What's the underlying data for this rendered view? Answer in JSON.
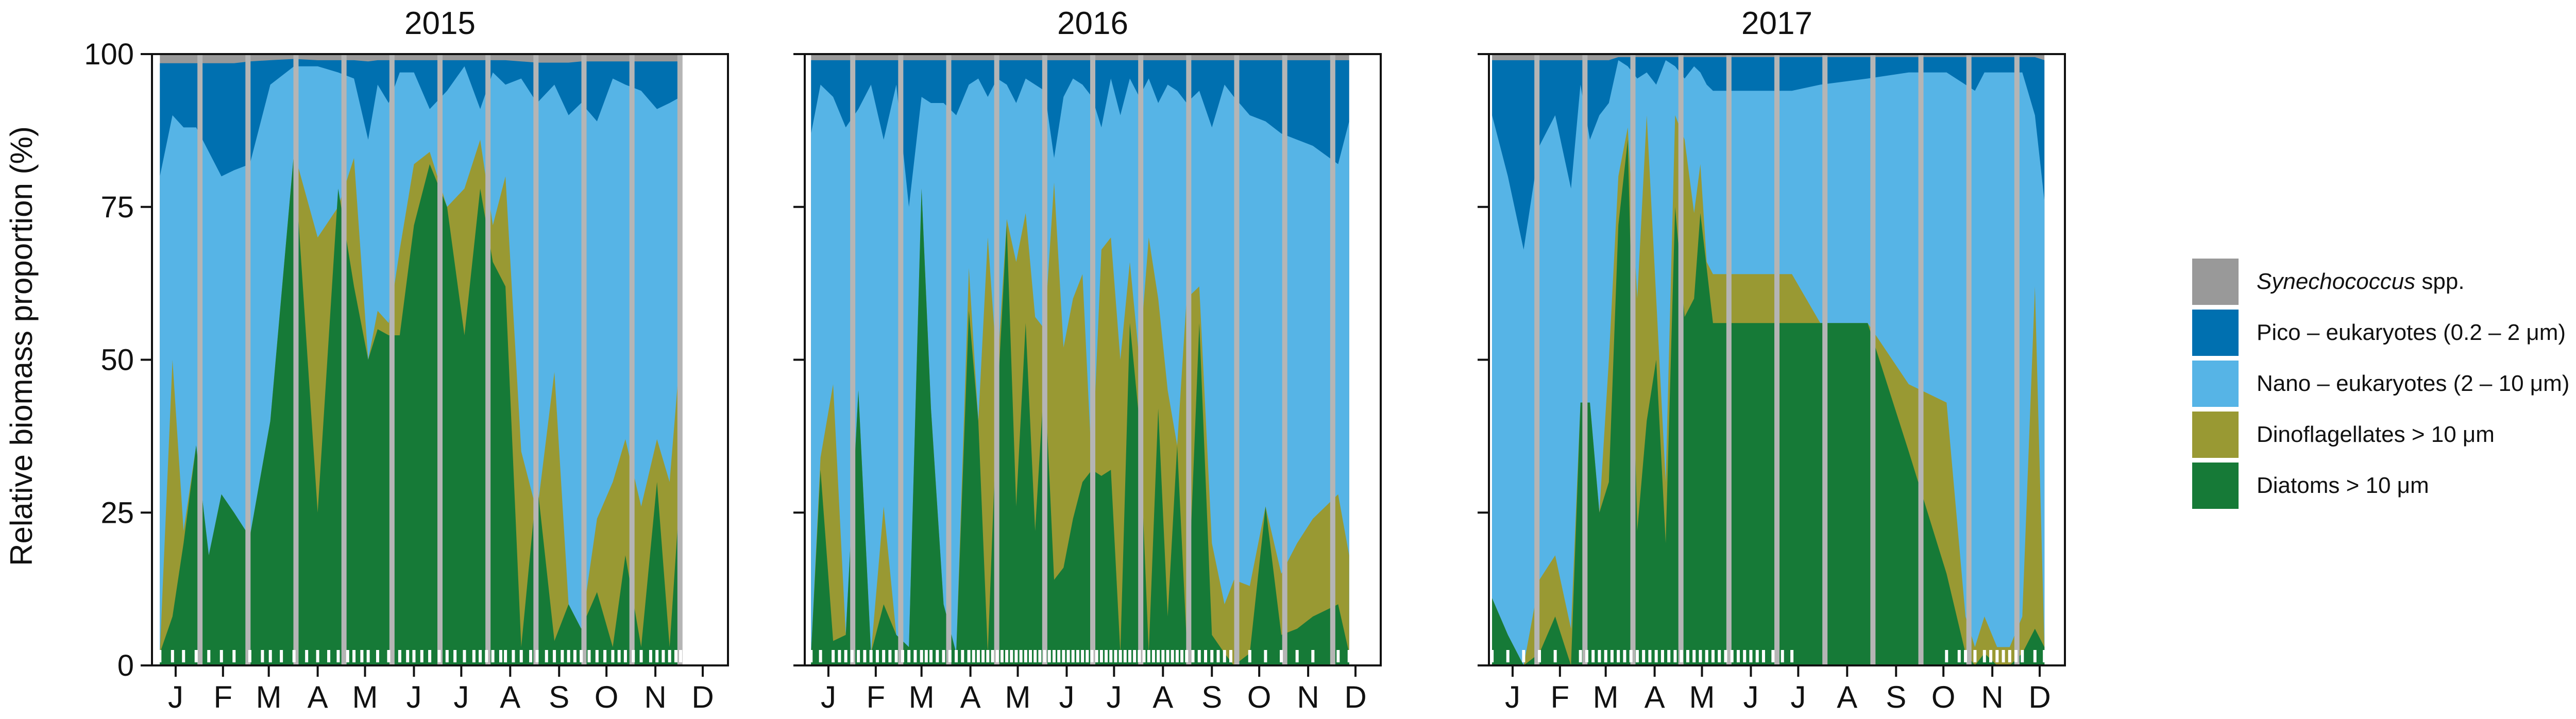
{
  "chart_data": {
    "type": "area",
    "stacked": true,
    "ylabel": "Relative biomass proportion (%)",
    "ylim": [
      0,
      100
    ],
    "yticks": [
      0,
      25,
      50,
      75,
      100
    ],
    "xlim": [
      0,
      365
    ],
    "month_ticks": [
      {
        "label": "J",
        "day": 15
      },
      {
        "label": "F",
        "day": 45
      },
      {
        "label": "M",
        "day": 74
      },
      {
        "label": "A",
        "day": 105
      },
      {
        "label": "M",
        "day": 135
      },
      {
        "label": "J",
        "day": 166
      },
      {
        "label": "J",
        "day": 196
      },
      {
        "label": "A",
        "day": 227
      },
      {
        "label": "S",
        "day": 258
      },
      {
        "label": "O",
        "day": 288
      },
      {
        "label": "N",
        "day": 319
      },
      {
        "label": "D",
        "day": 349
      }
    ],
    "colors": {
      "synechococcus": "#999999",
      "pico": "#0070b0",
      "nano": "#56b4e6",
      "dino": "#999933",
      "diatoms": "#167a37",
      "month_lines": "#b5b5b5",
      "rug": "#ffffff"
    },
    "legend": [
      {
        "key": "synechococcus",
        "label_italic": "Synechococcus",
        "label": " spp."
      },
      {
        "key": "pico",
        "label_italic": "",
        "label": "Pico – eukaryotes (0.2 – 2 μm)"
      },
      {
        "key": "nano",
        "label_italic": "",
        "label": "Nano – eukaryotes (2 – 10 μm)"
      },
      {
        "key": "dino",
        "label_italic": "",
        "label": "Dinoflagellates > 10 μm"
      },
      {
        "key": "diatoms",
        "label_italic": "",
        "label": "Diatoms > 10 μm"
      }
    ],
    "stack_order": [
      "diatoms",
      "dino",
      "nano",
      "pico",
      "synechococcus"
    ],
    "note": "values are cumulative percentages (top of each layer) per sampling day",
    "panels": [
      {
        "title": "2015",
        "x": [
          5,
          13,
          20,
          28,
          36,
          44,
          52,
          62,
          75,
          90,
          105,
          118,
          128,
          137,
          143,
          150,
          157,
          166,
          176,
          187,
          198,
          208,
          216,
          224,
          234,
          244,
          255,
          264,
          272,
          282,
          292,
          300,
          310,
          320,
          328,
          335
        ],
        "diatoms": [
          2,
          8,
          20,
          36,
          18,
          28,
          25,
          21,
          40,
          84,
          25,
          78,
          62,
          50,
          55,
          54,
          54,
          72,
          82,
          75,
          54,
          78,
          66,
          62,
          3,
          30,
          4,
          10,
          6,
          12,
          3,
          18,
          3,
          30,
          3,
          30
        ],
        "dino": [
          2,
          50,
          22,
          36,
          18,
          28,
          25,
          21,
          40,
          84,
          70,
          75,
          83,
          50,
          58,
          56,
          68,
          82,
          84,
          75,
          78,
          86,
          72,
          80,
          35,
          25,
          48,
          10,
          6,
          24,
          30,
          37,
          26,
          37,
          30,
          52
        ],
        "nano": [
          80,
          90,
          88,
          88,
          84,
          80,
          81,
          82,
          95,
          98,
          98,
          97,
          96,
          86,
          95,
          92,
          97,
          97,
          91,
          94,
          98,
          91,
          97,
          95,
          96,
          92,
          95,
          90,
          92,
          89,
          96,
          95,
          94,
          91,
          92,
          93
        ],
        "pico": [
          98.5,
          98.5,
          98.5,
          98.5,
          98.5,
          98.5,
          98.5,
          98.8,
          99,
          99.2,
          99,
          99,
          99,
          98.8,
          99,
          99,
          99,
          99,
          99,
          99,
          99,
          99,
          99,
          99,
          98.8,
          98.6,
          98.6,
          98.6,
          98.8,
          98.8,
          98.8,
          98.8,
          98.8,
          98.8,
          98.8,
          98.8
        ],
        "synechococcus": [
          100,
          100,
          100,
          100,
          100,
          100,
          100,
          100,
          100,
          100,
          100,
          100,
          100,
          100,
          100,
          100,
          100,
          100,
          100,
          100,
          100,
          100,
          100,
          100,
          100,
          100,
          100,
          100,
          100,
          100,
          100,
          100,
          100,
          100,
          100,
          100
        ],
        "samples": [
          5,
          13,
          20,
          28,
          36,
          44,
          52,
          62,
          70,
          75,
          82,
          90,
          98,
          105,
          112,
          118,
          124,
          128,
          133,
          137,
          143,
          150,
          157,
          162,
          166,
          171,
          176,
          182,
          187,
          192,
          198,
          204,
          208,
          212,
          216,
          221,
          224,
          229,
          234,
          240,
          244,
          250,
          255,
          260,
          264,
          268,
          272,
          277,
          282,
          287,
          292,
          296,
          300,
          305,
          310,
          316,
          320,
          324,
          328,
          332,
          335
        ]
      },
      {
        "title": "2016",
        "x": [
          4,
          10,
          18,
          26,
          34,
          42,
          50,
          58,
          66,
          74,
          80,
          88,
          96,
          104,
          110,
          116,
          122,
          128,
          134,
          140,
          146,
          152,
          158,
          164,
          170,
          176,
          182,
          188,
          194,
          200,
          206,
          212,
          218,
          224,
          230,
          236,
          242,
          250,
          258,
          266,
          272,
          282,
          292,
          302,
          312,
          322,
          338,
          345
        ],
        "diatoms": [
          2,
          32,
          4,
          5,
          45,
          2,
          10,
          5,
          3,
          78,
          42,
          10,
          2,
          58,
          40,
          2,
          43,
          72,
          26,
          56,
          22,
          48,
          14,
          16,
          24,
          30,
          32,
          31,
          32,
          2,
          56,
          40,
          2,
          42,
          8,
          36,
          4,
          56,
          5,
          2,
          0,
          2,
          26,
          5,
          6,
          8,
          10,
          2
        ],
        "dino": [
          2,
          34,
          46,
          5,
          45,
          2,
          26,
          5,
          3,
          78,
          42,
          10,
          2,
          65,
          40,
          70,
          48,
          73,
          66,
          74,
          57,
          55,
          79,
          52,
          60,
          64,
          32,
          68,
          70,
          50,
          66,
          50,
          70,
          60,
          45,
          36,
          60,
          62,
          20,
          10,
          14,
          13,
          26,
          15,
          20,
          24,
          28,
          18
        ],
        "nano": [
          87,
          95,
          93,
          88,
          91,
          95,
          86,
          95,
          75,
          93,
          92,
          92,
          90,
          95,
          96,
          93,
          96,
          95,
          92,
          96,
          95,
          94,
          83,
          93,
          96,
          95,
          93,
          88,
          96,
          90,
          96,
          93,
          96,
          92,
          95,
          94,
          92,
          94,
          88,
          95,
          93,
          90,
          89,
          87,
          86,
          85,
          82,
          89
        ],
        "pico": [
          99,
          99,
          99,
          99,
          99,
          99,
          99,
          99,
          99,
          99,
          99,
          99,
          99,
          99,
          99,
          99,
          99,
          99,
          99,
          99,
          99,
          99,
          99,
          99,
          99,
          99,
          99,
          99,
          99,
          99,
          99,
          99,
          99,
          99,
          99,
          99,
          99,
          99,
          99,
          99,
          99,
          99,
          99,
          99,
          99,
          99,
          99,
          99
        ],
        "synechococcus": [
          100,
          100,
          100,
          100,
          100,
          100,
          100,
          100,
          100,
          100,
          100,
          100,
          100,
          100,
          100,
          100,
          100,
          100,
          100,
          100,
          100,
          100,
          100,
          100,
          100,
          100,
          100,
          100,
          100,
          100,
          100,
          100,
          100,
          100,
          100,
          100,
          100,
          100,
          100,
          100,
          100,
          100,
          100,
          100,
          100,
          100,
          100,
          100
        ],
        "samples": [
          4,
          10,
          18,
          22,
          26,
          30,
          34,
          38,
          42,
          46,
          50,
          54,
          58,
          62,
          66,
          70,
          74,
          77,
          80,
          84,
          88,
          92,
          96,
          100,
          104,
          107,
          110,
          113,
          116,
          119,
          122,
          125,
          128,
          131,
          134,
          137,
          140,
          143,
          146,
          149,
          152,
          155,
          158,
          161,
          164,
          167,
          170,
          173,
          176,
          179,
          182,
          185,
          188,
          191,
          194,
          197,
          200,
          203,
          206,
          209,
          212,
          215,
          218,
          221,
          224,
          227,
          230,
          233,
          236,
          239,
          242,
          246,
          250,
          254,
          258,
          262,
          266,
          270,
          282,
          292,
          302,
          312,
          322,
          338,
          345
        ]
      },
      {
        "title": "2017",
        "x": [
          2,
          12,
          22,
          32,
          42,
          52,
          58,
          64,
          70,
          76,
          82,
          88,
          94,
          100,
          106,
          112,
          118,
          124,
          130,
          134,
          138,
          142,
          146,
          150,
          156,
          162,
          168,
          174,
          180,
          186,
          192,
          210,
          240,
          266,
          290,
          302,
          308,
          314,
          322,
          330,
          338,
          346,
          352
        ],
        "diatoms": [
          11,
          5,
          0,
          2,
          8,
          0,
          43,
          43,
          25,
          30,
          72,
          86,
          22,
          40,
          50,
          20,
          75,
          57,
          60,
          74,
          65,
          56,
          56,
          56,
          56,
          56,
          56,
          56,
          56,
          56,
          56,
          56,
          56,
          35,
          15,
          2,
          0,
          2,
          0,
          0,
          2,
          6,
          3
        ],
        "dino": [
          11,
          5,
          0,
          14,
          18,
          6,
          43,
          43,
          25,
          50,
          80,
          88,
          60,
          90,
          60,
          30,
          90,
          86,
          74,
          82,
          66,
          64,
          64,
          64,
          64,
          64,
          64,
          64,
          64,
          64,
          64,
          56,
          56,
          46,
          43,
          8,
          3,
          8,
          3,
          3,
          8,
          62,
          3
        ],
        "nano": [
          90,
          80,
          68,
          85,
          90,
          78,
          95,
          86,
          90,
          92,
          99,
          98,
          96,
          97,
          95,
          99,
          98,
          96,
          98,
          97,
          95,
          94,
          94,
          94,
          94,
          94,
          94,
          94,
          94,
          94,
          94,
          95,
          96,
          97,
          97,
          95,
          94,
          97,
          97,
          97,
          97,
          90,
          76
        ],
        "pico": [
          99,
          99,
          99,
          99,
          99,
          99,
          99,
          99,
          99,
          99,
          99.5,
          99.5,
          99.5,
          99.5,
          99.5,
          99.5,
          99.5,
          99.5,
          99.5,
          99.5,
          99.5,
          99.5,
          99.5,
          99.5,
          99.5,
          99.5,
          99.5,
          99.5,
          99.5,
          99.5,
          99.5,
          99.5,
          99.5,
          99.5,
          99.5,
          99.5,
          99.5,
          99.5,
          99.5,
          99.5,
          99.5,
          99.5,
          99
        ],
        "synechococcus": [
          100,
          100,
          100,
          100,
          100,
          100,
          100,
          100,
          100,
          100,
          100,
          100,
          100,
          100,
          100,
          100,
          100,
          100,
          100,
          100,
          100,
          100,
          100,
          100,
          100,
          100,
          100,
          100,
          100,
          100,
          100,
          100,
          100,
          100,
          100,
          100,
          100,
          100,
          100,
          100,
          100,
          100,
          100
        ],
        "samples": [
          2,
          12,
          22,
          32,
          42,
          58,
          62,
          66,
          70,
          74,
          78,
          82,
          86,
          90,
          94,
          98,
          102,
          106,
          110,
          114,
          118,
          122,
          126,
          130,
          134,
          138,
          142,
          146,
          150,
          154,
          158,
          162,
          166,
          170,
          174,
          180,
          186,
          192,
          290,
          298,
          302,
          308,
          314,
          318,
          322,
          326,
          330,
          334,
          338,
          346,
          352
        ]
      }
    ]
  }
}
